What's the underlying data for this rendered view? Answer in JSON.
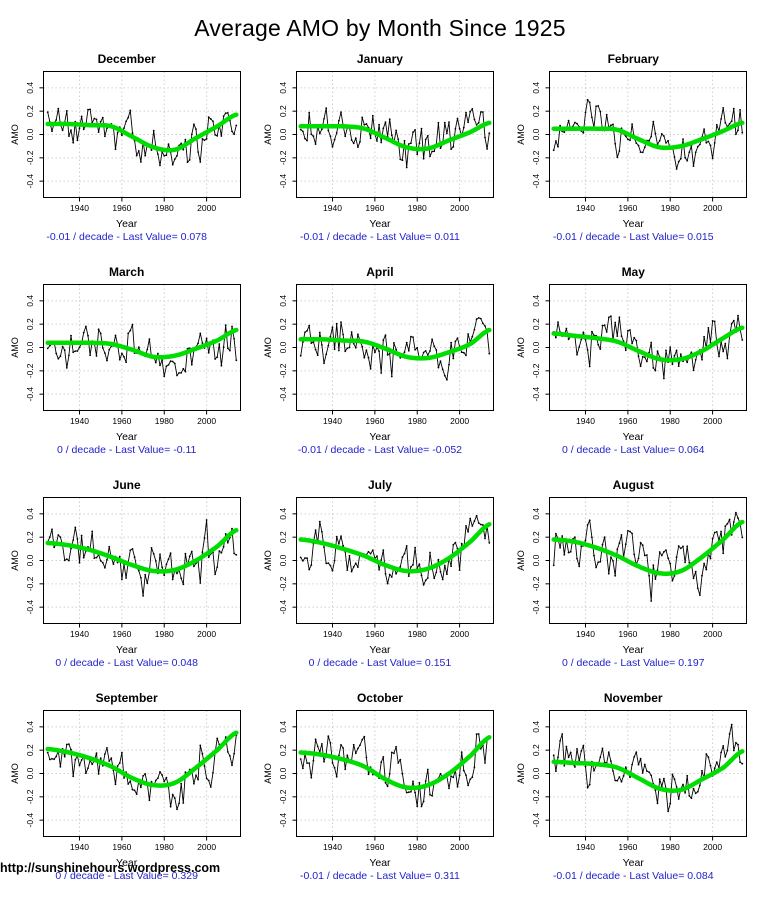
{
  "title": "Average AMO by Month Since 1925",
  "footer": {
    "url": "http://sunshinehours.wordpress.com"
  },
  "colors": {
    "smooth_line": "#00DD00",
    "data_line": "#000000",
    "caption_text": "#2222CC",
    "gridline": "#CFCFCF",
    "axis_box": "#000000"
  },
  "axis": {
    "x_label": "Year",
    "y_label": "AMO",
    "x_ticks": [
      1940,
      1960,
      1980,
      2000
    ],
    "y_ticks": [
      -0.4,
      -0.2,
      0.0,
      0.2,
      0.4
    ],
    "x_range": [
      1923,
      2016
    ],
    "y_range": [
      -0.54,
      0.54
    ],
    "grid": "dotted"
  },
  "chart_data": [
    {
      "type": "line",
      "title": "December",
      "x_label": "Year",
      "y_label": "AMO",
      "trend_per_decade": -0.01,
      "last_value": 0.078,
      "caption": "-0.01 / decade - Last Value= 0.078",
      "smooth_x": [
        1925,
        1935,
        1945,
        1955,
        1965,
        1975,
        1985,
        1995,
        2005,
        2014
      ],
      "smooth_y": [
        0.09,
        0.09,
        0.08,
        0.07,
        -0.02,
        -0.11,
        -0.13,
        -0.03,
        0.07,
        0.17
      ],
      "noise_seed": 5,
      "noise_amp": 0.22
    },
    {
      "type": "line",
      "title": "January",
      "x_label": "Year",
      "y_label": "AMO",
      "trend_per_decade": -0.01,
      "last_value": 0.011,
      "caption": "-0.01 / decade - Last Value= 0.011",
      "smooth_x": [
        1925,
        1935,
        1945,
        1955,
        1965,
        1975,
        1985,
        1995,
        2005,
        2014
      ],
      "smooth_y": [
        0.07,
        0.07,
        0.07,
        0.05,
        -0.03,
        -0.11,
        -0.12,
        -0.05,
        0.02,
        0.1
      ],
      "noise_seed": 14,
      "noise_amp": 0.22
    },
    {
      "type": "line",
      "title": "February",
      "x_label": "Year",
      "y_label": "AMO",
      "trend_per_decade": -0.01,
      "last_value": 0.015,
      "caption": "-0.01 / decade - Last Value= 0.015",
      "smooth_x": [
        1925,
        1935,
        1945,
        1955,
        1965,
        1975,
        1985,
        1995,
        2005,
        2014
      ],
      "smooth_y": [
        0.05,
        0.05,
        0.05,
        0.04,
        -0.04,
        -0.11,
        -0.1,
        -0.04,
        0.03,
        0.1
      ],
      "noise_seed": 23,
      "noise_amp": 0.22
    },
    {
      "type": "line",
      "title": "March",
      "x_label": "Year",
      "y_label": "AMO",
      "trend_per_decade": 0,
      "last_value": -0.11,
      "caption": "0 / decade - Last Value= -0.11",
      "smooth_x": [
        1925,
        1935,
        1945,
        1955,
        1965,
        1975,
        1985,
        1995,
        2005,
        2014
      ],
      "smooth_y": [
        0.04,
        0.04,
        0.04,
        0.03,
        -0.02,
        -0.08,
        -0.07,
        -0.01,
        0.06,
        0.15
      ],
      "noise_seed": 8,
      "noise_amp": 0.22
    },
    {
      "type": "line",
      "title": "April",
      "x_label": "Year",
      "y_label": "AMO",
      "trend_per_decade": -0.01,
      "last_value": -0.052,
      "caption": "-0.01 / decade - Last Value= -0.052",
      "smooth_x": [
        1925,
        1935,
        1945,
        1955,
        1965,
        1975,
        1985,
        1995,
        2005,
        2014
      ],
      "smooth_y": [
        0.07,
        0.07,
        0.06,
        0.05,
        -0.01,
        -0.08,
        -0.09,
        -0.04,
        0.03,
        0.15
      ],
      "noise_seed": 19,
      "noise_amp": 0.23
    },
    {
      "type": "line",
      "title": "May",
      "x_label": "Year",
      "y_label": "AMO",
      "trend_per_decade": 0,
      "last_value": 0.064,
      "caption": "0 / decade - Last Value= 0.064",
      "smooth_x": [
        1925,
        1935,
        1945,
        1955,
        1965,
        1975,
        1985,
        1995,
        2005,
        2014
      ],
      "smooth_y": [
        0.12,
        0.1,
        0.08,
        0.05,
        -0.03,
        -0.1,
        -0.1,
        -0.03,
        0.08,
        0.17
      ],
      "noise_seed": 2,
      "noise_amp": 0.23
    },
    {
      "type": "line",
      "title": "June",
      "x_label": "Year",
      "y_label": "AMO",
      "trend_per_decade": 0,
      "last_value": 0.048,
      "caption": "0 / decade - Last Value= 0.048",
      "smooth_x": [
        1925,
        1935,
        1945,
        1955,
        1965,
        1975,
        1985,
        1995,
        2005,
        2014
      ],
      "smooth_y": [
        0.15,
        0.13,
        0.09,
        0.03,
        -0.04,
        -0.09,
        -0.08,
        0.0,
        0.12,
        0.26
      ],
      "noise_seed": 11,
      "noise_amp": 0.24
    },
    {
      "type": "line",
      "title": "July",
      "x_label": "Year",
      "y_label": "AMO",
      "trend_per_decade": 0,
      "last_value": 0.151,
      "caption": "0 / decade - Last Value= 0.151",
      "smooth_x": [
        1925,
        1935,
        1945,
        1955,
        1965,
        1975,
        1985,
        1995,
        2005,
        2014
      ],
      "smooth_y": [
        0.18,
        0.15,
        0.1,
        0.04,
        -0.04,
        -0.09,
        -0.07,
        0.02,
        0.16,
        0.31
      ],
      "noise_seed": 29,
      "noise_amp": 0.24
    },
    {
      "type": "line",
      "title": "August",
      "x_label": "Year",
      "y_label": "AMO",
      "trend_per_decade": 0,
      "last_value": 0.197,
      "caption": "0 / decade - Last Value= 0.197",
      "smooth_x": [
        1925,
        1935,
        1945,
        1955,
        1965,
        1975,
        1985,
        1995,
        2005,
        2014
      ],
      "smooth_y": [
        0.18,
        0.16,
        0.11,
        0.04,
        -0.05,
        -0.11,
        -0.09,
        0.03,
        0.18,
        0.33
      ],
      "noise_seed": 7,
      "noise_amp": 0.24
    },
    {
      "type": "line",
      "title": "September",
      "x_label": "Year",
      "y_label": "AMO",
      "trend_per_decade": 0,
      "last_value": 0.329,
      "caption": "0 / decade - Last Value= 0.329",
      "smooth_x": [
        1925,
        1935,
        1945,
        1955,
        1965,
        1975,
        1985,
        1995,
        2005,
        2014
      ],
      "smooth_y": [
        0.21,
        0.18,
        0.13,
        0.06,
        -0.04,
        -0.1,
        -0.08,
        0.05,
        0.2,
        0.35
      ],
      "noise_seed": 17,
      "noise_amp": 0.24
    },
    {
      "type": "line",
      "title": "October",
      "x_label": "Year",
      "y_label": "AMO",
      "trend_per_decade": -0.01,
      "last_value": 0.311,
      "caption": "-0.01 / decade - Last Value= 0.311",
      "smooth_x": [
        1925,
        1935,
        1945,
        1955,
        1965,
        1975,
        1985,
        1995,
        2005,
        2014
      ],
      "smooth_y": [
        0.18,
        0.16,
        0.12,
        0.06,
        -0.05,
        -0.12,
        -0.1,
        0.0,
        0.15,
        0.31
      ],
      "noise_seed": 3,
      "noise_amp": 0.23
    },
    {
      "type": "line",
      "title": "November",
      "x_label": "Year",
      "y_label": "AMO",
      "trend_per_decade": -0.01,
      "last_value": 0.084,
      "caption": "-0.01 / decade - Last Value= 0.084",
      "smooth_x": [
        1925,
        1935,
        1945,
        1955,
        1965,
        1975,
        1985,
        1995,
        2005,
        2014
      ],
      "smooth_y": [
        0.1,
        0.09,
        0.08,
        0.05,
        -0.04,
        -0.13,
        -0.14,
        -0.05,
        0.05,
        0.19
      ],
      "noise_seed": 26,
      "noise_amp": 0.22
    }
  ]
}
